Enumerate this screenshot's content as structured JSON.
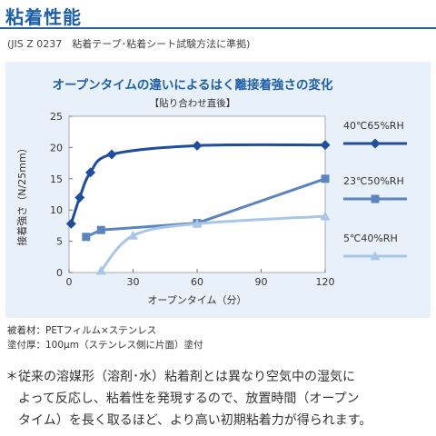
{
  "page": {
    "heading": "粘着性能",
    "standard": "(JIS Z 0237　粘着テープ･粘着シート試験方法に準拠)",
    "notes": [
      "被着材：PETフィルム×ステンレス",
      "塗付厚：100μm（ステンレス側に片面）塗付"
    ],
    "footnote": [
      "＊従来の溶媒形（溶剤･水）粘着剤とは異なり空気中の湿気に",
      "　よって反応し、粘着性を発現するので、放置時間（オープン",
      "　タイム）を長く取るほど、より高い初期粘着力が得られます。"
    ]
  },
  "chart_data": {
    "type": "line",
    "title": "オープンタイムの違いによるはく離接着強さの変化",
    "subtitle": "【貼り合わせ直後】",
    "xlabel": "オープンタイム（分）",
    "ylabel": "接着強さ（N/25mm）",
    "xlim": [
      0,
      120
    ],
    "ylim": [
      0,
      25
    ],
    "xticks": [
      0,
      30,
      60,
      90,
      120
    ],
    "yticks": [
      0,
      5,
      10,
      15,
      20,
      25
    ],
    "grid": false,
    "legend_position": "right",
    "series": [
      {
        "name": "40℃65%RH",
        "color": "#1f4e9c",
        "marker": "diamond",
        "curve": "smooth",
        "x": [
          1,
          5,
          10,
          20,
          60,
          120
        ],
        "y": [
          7.8,
          12,
          16,
          18.9,
          20.3,
          20.4
        ]
      },
      {
        "name": "23℃50%RH",
        "color": "#5b84be",
        "marker": "square",
        "curve": "linear",
        "x": [
          8,
          15,
          60,
          120
        ],
        "y": [
          5.7,
          6.8,
          7.9,
          15
        ]
      },
      {
        "name": "5℃40%RH",
        "color": "#a9c6e6",
        "marker": "triangle",
        "curve": "smooth",
        "x": [
          15,
          30,
          60,
          120
        ],
        "y": [
          0.3,
          5.9,
          7.8,
          9
        ]
      }
    ]
  }
}
